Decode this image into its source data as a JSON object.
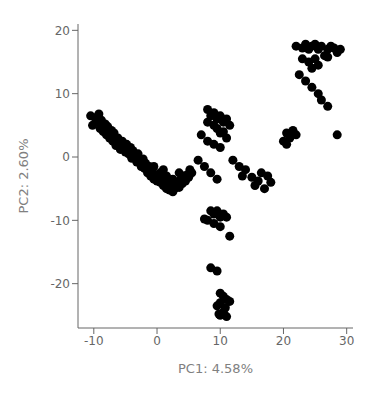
{
  "chart_data": {
    "type": "scatter",
    "xlabel": "PC1: 4.58%",
    "ylabel": "PC2: 2.60%",
    "xlim": [
      -12.5,
      31
    ],
    "ylim": [
      -27,
      21
    ],
    "xticks": [
      -10,
      0,
      10,
      20,
      30
    ],
    "yticks": [
      -20,
      -10,
      0,
      10,
      20
    ],
    "color": "black",
    "grid": false,
    "x": [
      -10.5,
      -10.2,
      -9.8,
      -9.5,
      -9.2,
      -9.0,
      -8.8,
      -8.5,
      -8.2,
      -8.0,
      -7.8,
      -7.5,
      -7.2,
      -7.0,
      -6.8,
      -6.5,
      -6.2,
      -6.0,
      -5.8,
      -5.5,
      -5.2,
      -5.0,
      -4.8,
      -4.5,
      -4.2,
      -4.0,
      -3.8,
      -3.5,
      -3.2,
      -3.0,
      -2.8,
      -2.5,
      -2.2,
      -2.0,
      -1.8,
      -1.5,
      -1.2,
      -1.0,
      -0.8,
      -0.5,
      -0.2,
      0.0,
      0.2,
      0.5,
      0.8,
      1.0,
      1.3,
      1.5,
      1.8,
      2.0,
      2.2,
      2.5,
      2.8,
      3.0,
      3.2,
      3.5,
      3.8,
      4.0,
      4.2,
      4.5,
      4.8,
      5.0,
      5.2,
      5.5,
      0.5,
      1.0,
      -0.5,
      1.5,
      2.5,
      3.5,
      8.0,
      8.5,
      8.0,
      9.0,
      9.5,
      9.0,
      10.0,
      10.5,
      9.5,
      10.0,
      11.0,
      11.5,
      10.5,
      11.0,
      7.0,
      8.0,
      9.0,
      10.0,
      6.5,
      7.5,
      8.5,
      9.5,
      12.0,
      13.0,
      14.0,
      13.5,
      8.5,
      9.0,
      9.5,
      10.0,
      10.5,
      8.0,
      11.0,
      7.5,
      9.0,
      10.0,
      11.5,
      8.5,
      9.5,
      10.0,
      10.5,
      11.0,
      10.0,
      9.5,
      11.5,
      10.8,
      10.5,
      10.0,
      9.8,
      11.0,
      15.0,
      16.0,
      17.0,
      16.5,
      15.5,
      18.0,
      17.5,
      20.0,
      21.0,
      20.5,
      22.0,
      20.5,
      21.5,
      28.5,
      22.0,
      23.0,
      23.5,
      24.0,
      24.5,
      25.0,
      25.5,
      26.0,
      23.0,
      24.0,
      25.0,
      24.5,
      25.5,
      26.5,
      27.0,
      27.5,
      28.0,
      27.0,
      28.5,
      29.0,
      22.5,
      23.5,
      24.5,
      25.5,
      26.0,
      27.0
    ],
    "values": [
      6.5,
      5.0,
      6.2,
      5.5,
      6.8,
      4.5,
      5.8,
      4.0,
      5.2,
      3.5,
      4.8,
      3.0,
      4.2,
      2.5,
      3.8,
      1.8,
      3.0,
      2.0,
      1.2,
      2.5,
      1.5,
      0.8,
      2.0,
      0.5,
      1.5,
      -0.2,
      1.0,
      0.0,
      -0.8,
      0.5,
      -0.5,
      -1.5,
      -0.3,
      -1.8,
      -1.0,
      -2.5,
      -1.5,
      -3.0,
      -2.0,
      -3.5,
      -2.8,
      -3.8,
      -3.0,
      -4.0,
      -3.2,
      -4.5,
      -3.8,
      -5.0,
      -4.2,
      -5.2,
      -4.5,
      -5.5,
      -5.0,
      -4.5,
      -4.0,
      -4.8,
      -3.5,
      -4.2,
      -3.0,
      -3.8,
      -2.8,
      -3.2,
      -2.0,
      -2.5,
      -2.5,
      -2.0,
      -1.5,
      -3.0,
      -3.5,
      -2.5,
      7.5,
      6.5,
      5.5,
      7.0,
      6.0,
      5.0,
      6.5,
      5.5,
      4.5,
      3.8,
      6.0,
      5.0,
      4.0,
      3.0,
      3.5,
      2.5,
      2.0,
      1.5,
      -0.5,
      -1.5,
      -2.5,
      -3.5,
      -0.5,
      -1.5,
      -2.0,
      -3.0,
      -8.5,
      -9.0,
      -8.5,
      -9.5,
      -9.0,
      -10.0,
      -9.5,
      -9.8,
      -10.5,
      -11.0,
      -12.5,
      -17.5,
      -18.0,
      -21.5,
      -22.0,
      -22.5,
      -23.0,
      -23.5,
      -22.8,
      -23.8,
      -24.5,
      -25.0,
      -24.8,
      -25.2,
      -3.2,
      -3.8,
      -5.0,
      -2.5,
      -4.5,
      -4.0,
      -3.0,
      2.5,
      3.0,
      2.0,
      3.5,
      3.8,
      4.2,
      3.5,
      17.5,
      17.2,
      17.8,
      17.0,
      17.5,
      17.8,
      17.0,
      17.5,
      15.5,
      15.0,
      15.5,
      14.0,
      14.5,
      16.0,
      17.0,
      17.5,
      17.2,
      15.8,
      16.5,
      17.0,
      13.0,
      12.0,
      11.0,
      10.0,
      9.0,
      8.0
    ]
  }
}
